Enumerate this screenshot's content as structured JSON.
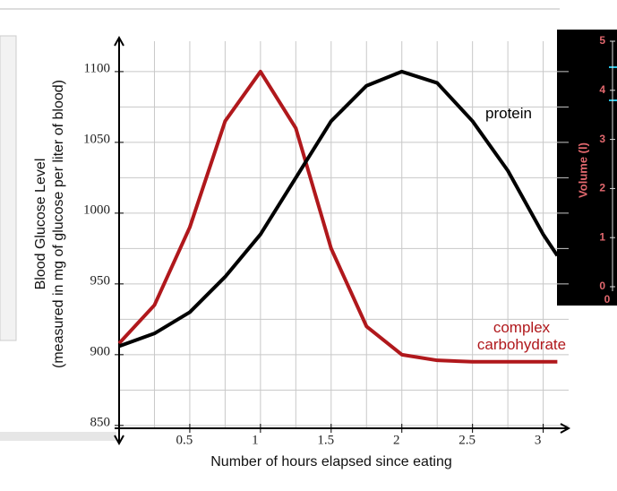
{
  "chart_data": {
    "type": "line",
    "x_label": "Number of hours elapsed since eating",
    "y_label": [
      "Blood Glucose Level",
      "(measured in mg of glucose per liter of blood)"
    ],
    "x": [
      0,
      0.25,
      0.5,
      0.75,
      1,
      1.25,
      1.5,
      1.75,
      2,
      2.25,
      2.5,
      2.75,
      3,
      3.1
    ],
    "series": [
      {
        "name": "complex carbohydrate",
        "color": "#b0181c",
        "values": [
          908,
          935,
          990,
          1065,
          1100,
          1060,
          975,
          920,
          900,
          896,
          895,
          895,
          895,
          895
        ]
      },
      {
        "name": "protein",
        "color": "#000000",
        "values": [
          906,
          915,
          930,
          955,
          985,
          1025,
          1065,
          1090,
          1100,
          1092,
          1065,
          1030,
          985,
          970
        ]
      }
    ],
    "xlim": [
      0,
      3.18
    ],
    "ylim": [
      848,
      1124
    ],
    "xticks": [
      0.5,
      1,
      1.5,
      2,
      2.5,
      3
    ],
    "yticks": [
      850,
      900,
      950,
      1000,
      1050,
      1100
    ],
    "grid": true
  },
  "overlay_panel": {
    "y_label": "Volume (l)",
    "yticks": [
      0,
      1,
      2,
      3,
      4,
      5
    ],
    "x_start": 0
  }
}
